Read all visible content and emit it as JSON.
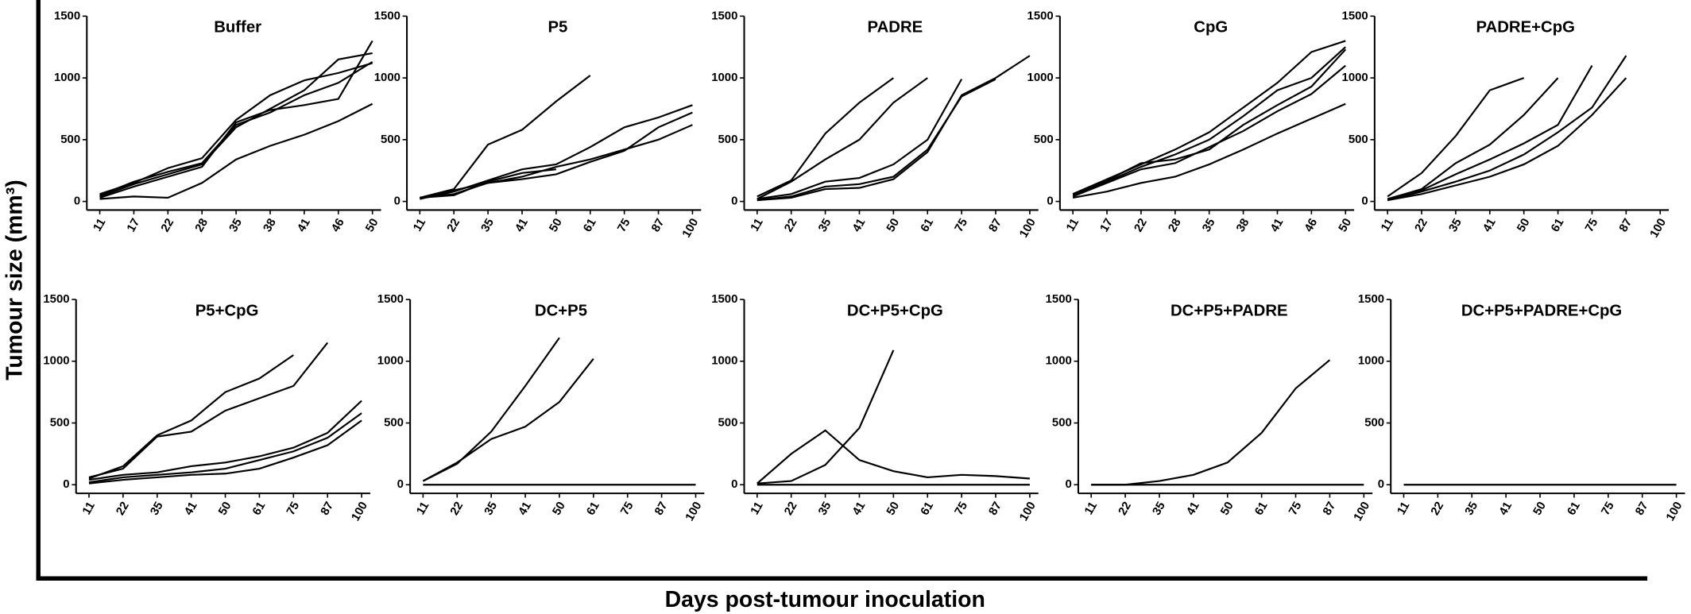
{
  "figure": {
    "ylabel": "Tumour size (mm³)",
    "xlabel": "Days post-tumour inoculation"
  },
  "chart_data": [
    {
      "type": "line",
      "title": "Buffer",
      "color": "#000000",
      "categories": [
        "11",
        "17",
        "22",
        "28",
        "35",
        "38",
        "41",
        "46",
        "50"
      ],
      "ylim": [
        0,
        1500
      ],
      "yticks": [
        0,
        500,
        1000,
        1500
      ],
      "series": [
        {
          "values": [
            60,
            150,
            270,
            350,
            660,
            860,
            980,
            1040,
            1120
          ]
        },
        {
          "values": [
            40,
            140,
            220,
            300,
            600,
            750,
            900,
            1150,
            1200
          ]
        },
        {
          "values": [
            50,
            160,
            240,
            310,
            620,
            720,
            860,
            960,
            1130
          ]
        },
        {
          "values": [
            30,
            120,
            200,
            280,
            640,
            740,
            780,
            830,
            1300
          ]
        },
        {
          "values": [
            20,
            40,
            30,
            150,
            340,
            450,
            540,
            650,
            790
          ]
        }
      ]
    },
    {
      "type": "line",
      "title": "P5",
      "color": "#000000",
      "categories": [
        "11",
        "22",
        "35",
        "41",
        "50",
        "61",
        "75",
        "87",
        "100"
      ],
      "ylim": [
        0,
        1500
      ],
      "yticks": [
        0,
        500,
        1000,
        1500
      ],
      "series": [
        {
          "values": [
            30,
            100,
            460,
            580,
            810,
            1020,
            null,
            null,
            null
          ]
        },
        {
          "values": [
            20,
            80,
            170,
            260,
            300,
            440,
            600,
            680,
            780
          ]
        },
        {
          "values": [
            30,
            60,
            150,
            200,
            280,
            340,
            420,
            500,
            620
          ]
        },
        {
          "values": [
            20,
            90,
            150,
            180,
            220,
            320,
            410,
            600,
            720
          ]
        },
        {
          "values": [
            30,
            50,
            160,
            230,
            260,
            null,
            null,
            null,
            null
          ]
        }
      ]
    },
    {
      "type": "line",
      "title": "PADRE",
      "color": "#000000",
      "categories": [
        "11",
        "22",
        "35",
        "41",
        "50",
        "61",
        "75",
        "87",
        "100"
      ],
      "ylim": [
        0,
        1500
      ],
      "yticks": [
        0,
        500,
        1000,
        1500
      ],
      "series": [
        {
          "values": [
            40,
            170,
            550,
            800,
            1000,
            null,
            null,
            null,
            null
          ]
        },
        {
          "values": [
            20,
            160,
            340,
            500,
            800,
            1000,
            null,
            null,
            null
          ]
        },
        {
          "values": [
            20,
            60,
            160,
            190,
            300,
            500,
            990,
            null,
            null
          ]
        },
        {
          "values": [
            10,
            40,
            120,
            140,
            200,
            420,
            850,
            990,
            null
          ]
        },
        {
          "values": [
            10,
            30,
            100,
            110,
            180,
            400,
            860,
            1000,
            1180
          ]
        }
      ]
    },
    {
      "type": "line",
      "title": "CpG",
      "color": "#000000",
      "categories": [
        "11",
        "17",
        "22",
        "28",
        "35",
        "38",
        "41",
        "46",
        "50"
      ],
      "ylim": [
        0,
        1500
      ],
      "yticks": [
        0,
        500,
        1000,
        1500
      ],
      "series": [
        {
          "values": [
            60,
            180,
            300,
            420,
            560,
            760,
            960,
            1210,
            1300
          ]
        },
        {
          "values": [
            50,
            160,
            280,
            380,
            500,
            690,
            900,
            1000,
            1250
          ]
        },
        {
          "values": [
            60,
            170,
            310,
            340,
            420,
            620,
            780,
            930,
            1230
          ]
        },
        {
          "values": [
            40,
            150,
            260,
            310,
            440,
            570,
            730,
            870,
            1100
          ]
        },
        {
          "values": [
            30,
            80,
            150,
            200,
            300,
            420,
            550,
            670,
            790
          ]
        }
      ]
    },
    {
      "type": "line",
      "title": "PADRE+CpG",
      "color": "#000000",
      "categories": [
        "11",
        "22",
        "35",
        "41",
        "50",
        "61",
        "75",
        "87",
        "100"
      ],
      "ylim": [
        0,
        1500
      ],
      "yticks": [
        0,
        500,
        1000,
        1500
      ],
      "series": [
        {
          "values": [
            40,
            230,
            530,
            900,
            1000,
            null,
            null,
            null,
            null
          ]
        },
        {
          "values": [
            20,
            100,
            310,
            460,
            700,
            1000,
            null,
            null,
            null
          ]
        },
        {
          "values": [
            20,
            90,
            220,
            340,
            470,
            620,
            1100,
            null,
            null
          ]
        },
        {
          "values": [
            10,
            80,
            160,
            250,
            380,
            560,
            760,
            1180,
            null
          ]
        },
        {
          "values": [
            10,
            60,
            130,
            200,
            300,
            450,
            700,
            1000,
            null
          ]
        }
      ]
    },
    {
      "type": "line",
      "title": "P5+CpG",
      "color": "#000000",
      "categories": [
        "11",
        "22",
        "35",
        "41",
        "50",
        "61",
        "75",
        "87",
        "100"
      ],
      "ylim": [
        0,
        1500
      ],
      "yticks": [
        0,
        500,
        1000,
        1500
      ],
      "series": [
        {
          "values": [
            50,
            150,
            400,
            520,
            750,
            860,
            1050,
            null,
            null
          ]
        },
        {
          "values": [
            60,
            130,
            390,
            430,
            600,
            700,
            800,
            1150,
            null
          ]
        },
        {
          "values": [
            40,
            80,
            100,
            150,
            180,
            230,
            300,
            420,
            680
          ]
        },
        {
          "values": [
            20,
            60,
            80,
            100,
            130,
            200,
            270,
            380,
            580
          ]
        },
        {
          "values": [
            10,
            40,
            60,
            80,
            90,
            130,
            220,
            320,
            520
          ]
        }
      ]
    },
    {
      "type": "line",
      "title": "DC+P5",
      "color": "#000000",
      "categories": [
        "11",
        "22",
        "35",
        "41",
        "50",
        "61",
        "75",
        "87",
        "100"
      ],
      "ylim": [
        0,
        1500
      ],
      "yticks": [
        0,
        500,
        1000,
        1500
      ],
      "series": [
        {
          "values": [
            30,
            170,
            430,
            800,
            1190,
            null,
            null,
            null,
            null
          ]
        },
        {
          "values": [
            30,
            180,
            370,
            470,
            670,
            1020,
            null,
            null,
            null
          ]
        },
        {
          "values": [
            0,
            0,
            0,
            0,
            0,
            0,
            0,
            0,
            0
          ]
        }
      ]
    },
    {
      "type": "line",
      "title": "DC+P5+CpG",
      "color": "#000000",
      "categories": [
        "11",
        "22",
        "35",
        "41",
        "50",
        "61",
        "75",
        "87",
        "100"
      ],
      "ylim": [
        0,
        1500
      ],
      "yticks": [
        0,
        500,
        1000,
        1500
      ],
      "series": [
        {
          "values": [
            10,
            30,
            160,
            460,
            1090,
            null,
            null,
            null,
            null
          ]
        },
        {
          "values": [
            10,
            250,
            440,
            200,
            110,
            60,
            80,
            70,
            50
          ]
        },
        {
          "values": [
            0,
            0,
            0,
            0,
            0,
            0,
            0,
            0,
            0
          ]
        }
      ]
    },
    {
      "type": "line",
      "title": "DC+P5+PADRE",
      "color": "#000000",
      "categories": [
        "11",
        "22",
        "35",
        "41",
        "50",
        "61",
        "75",
        "87",
        "100"
      ],
      "ylim": [
        0,
        1500
      ],
      "yticks": [
        0,
        500,
        1000,
        1500
      ],
      "series": [
        {
          "values": [
            0,
            0,
            30,
            80,
            180,
            420,
            780,
            1010,
            null
          ]
        },
        {
          "values": [
            0,
            0,
            0,
            0,
            0,
            0,
            0,
            0,
            0
          ]
        }
      ]
    },
    {
      "type": "line",
      "title": "DC+P5+PADRE+CpG",
      "color": "#000000",
      "categories": [
        "11",
        "22",
        "35",
        "41",
        "50",
        "61",
        "75",
        "87",
        "100"
      ],
      "ylim": [
        0,
        1500
      ],
      "yticks": [
        0,
        500,
        1000,
        1500
      ],
      "series": [
        {
          "values": [
            0,
            0,
            0,
            0,
            0,
            0,
            0,
            0,
            0
          ]
        }
      ]
    }
  ]
}
